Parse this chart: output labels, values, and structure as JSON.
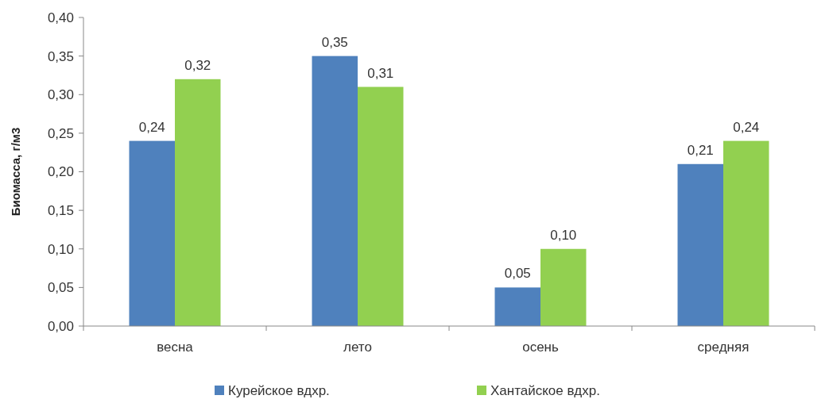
{
  "chart_data": {
    "type": "bar",
    "ylabel": "Биомасса, г/м3",
    "categories": [
      "весна",
      "лето",
      "осень",
      "средняя"
    ],
    "series": [
      {
        "name": "Курейское вдхр.",
        "color": "#4f81bd",
        "values": [
          0.24,
          0.35,
          0.05,
          0.21
        ],
        "value_labels": [
          "0,24",
          "0,35",
          "0,05",
          "0,21"
        ]
      },
      {
        "name": "Хантайское вдхр.",
        "color": "#92d050",
        "values": [
          0.32,
          0.31,
          0.1,
          0.24
        ],
        "value_labels": [
          "0,32",
          "0,31",
          "0,10",
          "0,24"
        ]
      }
    ],
    "ylim": [
      0,
      0.4
    ],
    "yticks": [
      {
        "value": 0,
        "label": "0,00"
      },
      {
        "value": 0.05,
        "label": "0,05"
      },
      {
        "value": 0.1,
        "label": "0,10"
      },
      {
        "value": 0.15,
        "label": "0,15"
      },
      {
        "value": 0.2,
        "label": "0,20"
      },
      {
        "value": 0.25,
        "label": "0,25"
      },
      {
        "value": 0.3,
        "label": "0,30"
      },
      {
        "value": 0.35,
        "label": "0,35"
      },
      {
        "value": 0.4,
        "label": "0,40"
      }
    ],
    "grid": false,
    "legend": "bottom"
  }
}
